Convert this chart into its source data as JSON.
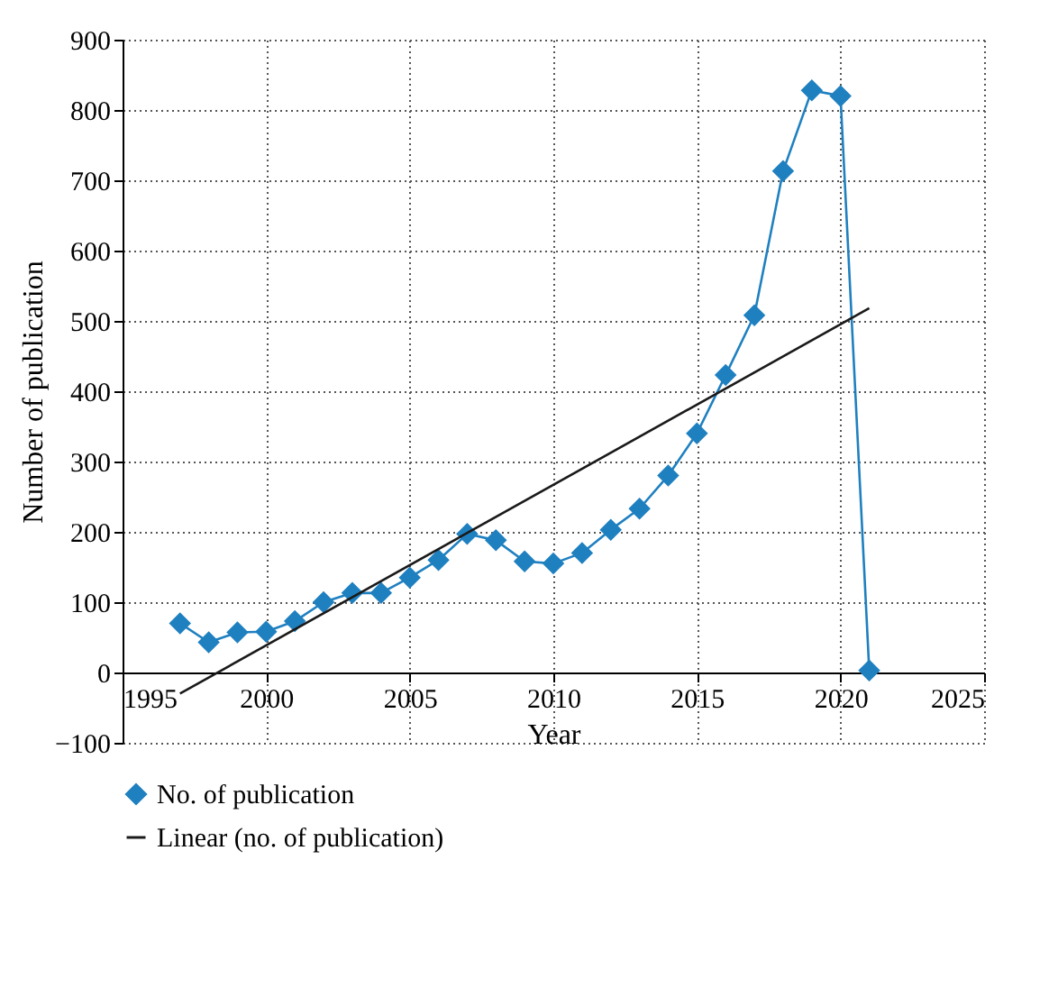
{
  "chart_data": {
    "type": "line",
    "xlabel": "Year",
    "ylabel": "Number of publication",
    "xlim": [
      1995,
      2025
    ],
    "xticks": [
      1995,
      2000,
      2005,
      2010,
      2015,
      2020,
      2025
    ],
    "ylim": [
      -100,
      900
    ],
    "yticks": [
      -100,
      0,
      100,
      200,
      300,
      400,
      500,
      600,
      700,
      800,
      900
    ],
    "grid": true,
    "legend": "bottom",
    "marker": "diamond",
    "series": [
      {
        "name": "No. of publication",
        "color": "#1f80c0",
        "x": [
          1997,
          1998,
          1999,
          2000,
          2001,
          2002,
          2003,
          2004,
          2005,
          2006,
          2007,
          2008,
          2009,
          2010,
          2011,
          2012,
          2013,
          2014,
          2015,
          2016,
          2017,
          2018,
          2019,
          2020,
          2021
        ],
        "values": [
          70,
          43,
          57,
          58,
          73,
          100,
          113,
          113,
          135,
          160,
          197,
          188,
          158,
          155,
          170,
          203,
          233,
          280,
          340,
          423,
          508,
          713,
          828,
          820,
          3
        ]
      },
      {
        "name": "Linear (no. of publication)",
        "color": "#1a1a1a",
        "type": "line",
        "marker": "none",
        "x": [
          1997,
          2021
        ],
        "values": [
          -30,
          518
        ]
      }
    ]
  }
}
